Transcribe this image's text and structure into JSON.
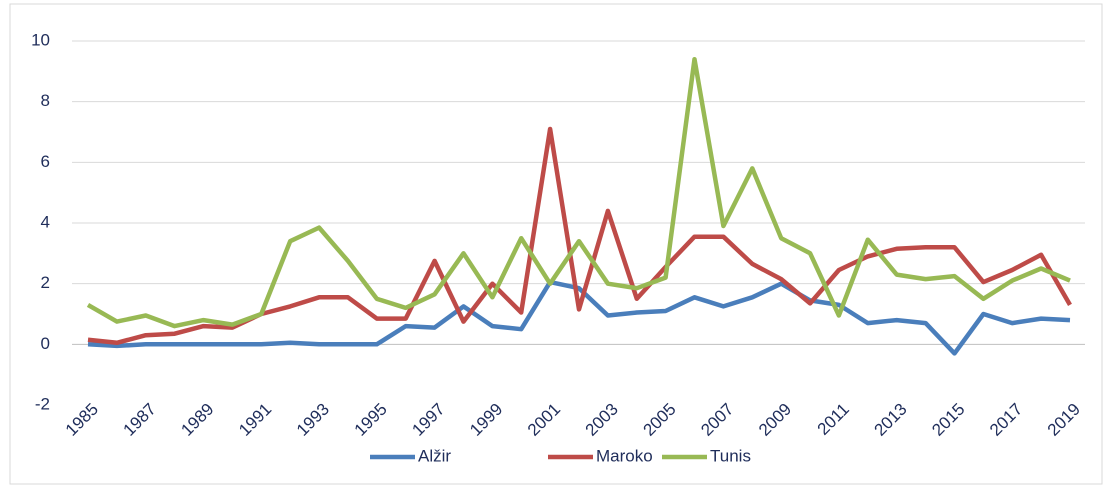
{
  "chart_data": {
    "type": "line",
    "categories": [
      "1985",
      null,
      "1987",
      null,
      "1989",
      null,
      "1991",
      null,
      "1993",
      null,
      "1995",
      null,
      "1997",
      null,
      "1999",
      null,
      "2001",
      null,
      "2003",
      null,
      "2005",
      null,
      "2007",
      null,
      "2009",
      null,
      "2011",
      null,
      "2013",
      null,
      "2015",
      null,
      "2017",
      null,
      "2019"
    ],
    "series": [
      {
        "name": "Alžir",
        "color": "#4a7ebb",
        "values": [
          0.0,
          -0.05,
          0.0,
          0.0,
          0.0,
          0.0,
          0.0,
          0.05,
          0.0,
          0.0,
          0.0,
          0.6,
          0.55,
          1.25,
          0.6,
          0.5,
          2.05,
          1.85,
          0.95,
          1.05,
          1.1,
          1.55,
          1.25,
          1.55,
          2.0,
          1.45,
          1.3,
          0.7,
          0.8,
          0.7,
          -0.3,
          1.0,
          0.7,
          0.85,
          0.8
        ]
      },
      {
        "name": "Maroko",
        "color": "#be4b48",
        "values": [
          0.15,
          0.05,
          0.3,
          0.35,
          0.6,
          0.55,
          1.0,
          1.25,
          1.55,
          1.55,
          0.85,
          0.85,
          2.75,
          0.75,
          2.0,
          1.05,
          7.1,
          1.15,
          4.4,
          1.5,
          2.55,
          3.55,
          3.55,
          2.65,
          2.15,
          1.35,
          2.45,
          2.9,
          3.15,
          3.2,
          3.2,
          2.05,
          2.45,
          2.95,
          1.3
        ]
      },
      {
        "name": "Tunis",
        "color": "#98b954",
        "values": [
          1.3,
          0.75,
          0.95,
          0.6,
          0.8,
          0.65,
          1.0,
          3.4,
          3.85,
          2.75,
          1.5,
          1.2,
          1.65,
          3.0,
          1.55,
          3.5,
          2.0,
          3.4,
          2.0,
          1.85,
          2.2,
          9.4,
          3.9,
          5.8,
          3.5,
          3.0,
          0.95,
          3.45,
          2.3,
          2.15,
          2.25,
          1.5,
          2.1,
          2.5,
          2.1
        ]
      }
    ],
    "ylim": [
      -2,
      10
    ],
    "yticks": [
      -2,
      0,
      2,
      4,
      6,
      8,
      10
    ],
    "grid": true,
    "legend": "bottom"
  }
}
